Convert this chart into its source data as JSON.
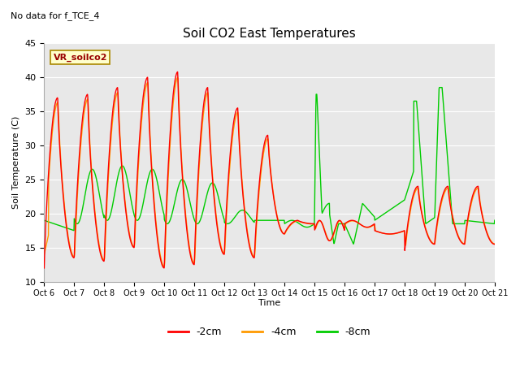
{
  "title": "Soil CO2 East Temperatures",
  "subtitle": "No data for f_TCE_4",
  "ylabel": "Soil Temperature (C)",
  "xlabel": "Time",
  "ylim": [
    10,
    45
  ],
  "plot_bg": "#e8e8e8",
  "annotation_text": "VR_soilco2",
  "xtick_labels": [
    "Oct 6",
    "Oct 7",
    "Oct 8",
    "Oct 9",
    "Oct 10",
    "Oct 11",
    "Oct 12",
    "Oct 13",
    "Oct 14",
    "Oct 15",
    "Oct 16",
    "Oct 17",
    "Oct 18",
    "Oct 19",
    "Oct 20",
    "Oct 21"
  ],
  "legend": [
    {
      "label": "-2cm",
      "color": "#ff0000"
    },
    {
      "label": "-4cm",
      "color": "#ff9900"
    },
    {
      "label": "-8cm",
      "color": "#00cc00"
    }
  ],
  "n_points": 1500,
  "color_2cm": "#ff0000",
  "color_4cm": "#ff9900",
  "color_8cm": "#00cc00"
}
